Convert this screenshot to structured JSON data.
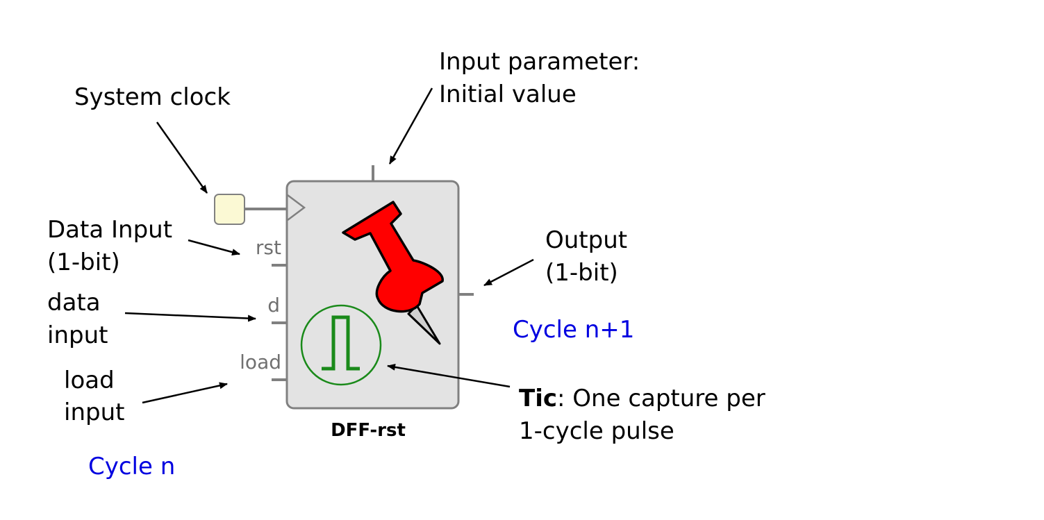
{
  "colors": {
    "block_fill": "#e3e3e3",
    "block_stroke": "#808080",
    "clock_source_fill": "#fbf9d4",
    "pin_label": "#707070",
    "pushpin_red": "#ff0000",
    "pulse_green": "#1a8a1a",
    "cycle_label": "#0000e0"
  },
  "block": {
    "title": "DFF-rst"
  },
  "pins": {
    "rst": "rst",
    "d": "d",
    "load": "load"
  },
  "icons": [
    "pushpin-icon",
    "pulse-icon",
    "clock-source-icon"
  ],
  "annotations": {
    "system_clock": "System clock",
    "input_param_line1": "Input parameter:",
    "input_param_line2": "Initial value",
    "data_input_line1": "Data Input",
    "data_input_line2": "(1-bit)",
    "data_input2_line1": "data",
    "data_input2_line2": "input",
    "load_input_line1": "load",
    "load_input_line2": "input",
    "output_line1": "Output",
    "output_line2": "(1-bit)",
    "tic_bold": "Tic",
    "tic_rest": ": One capture per",
    "tic_line2": "1-cycle pulse",
    "cycle_n": "Cycle n",
    "cycle_n1": "Cycle n+1"
  }
}
